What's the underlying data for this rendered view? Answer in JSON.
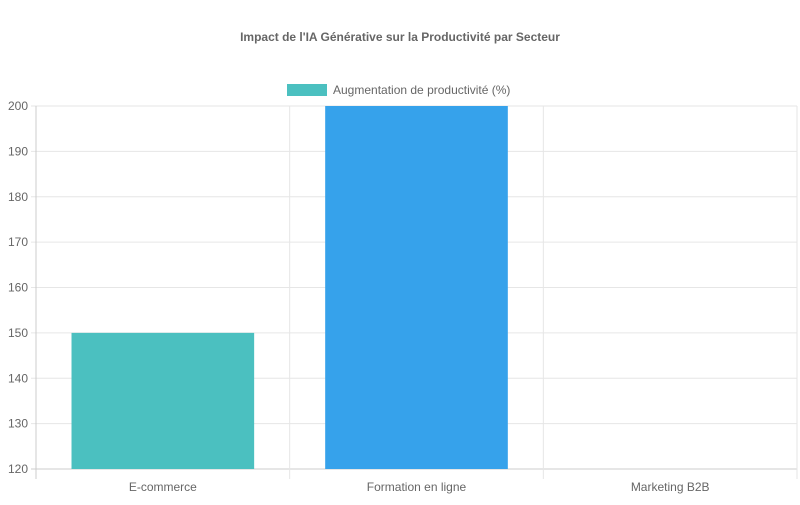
{
  "chart_data": {
    "type": "bar",
    "title": "Impact de l'IA Générative sur la Productivité par Secteur",
    "categories": [
      "E-commerce",
      "Formation en ligne",
      "Marketing B2B"
    ],
    "series": [
      {
        "name": "Augmentation de productivité (%)",
        "values": [
          150,
          200,
          120
        ],
        "colors": [
          "#4BC0C0",
          "#36A2EB",
          "#FFCE56"
        ]
      }
    ],
    "legend_color": "#4BC0C0",
    "ylim": [
      120,
      200
    ],
    "yticks": [
      120,
      130,
      140,
      150,
      160,
      170,
      180,
      190,
      200
    ],
    "grid": true,
    "legend_position": "top"
  }
}
